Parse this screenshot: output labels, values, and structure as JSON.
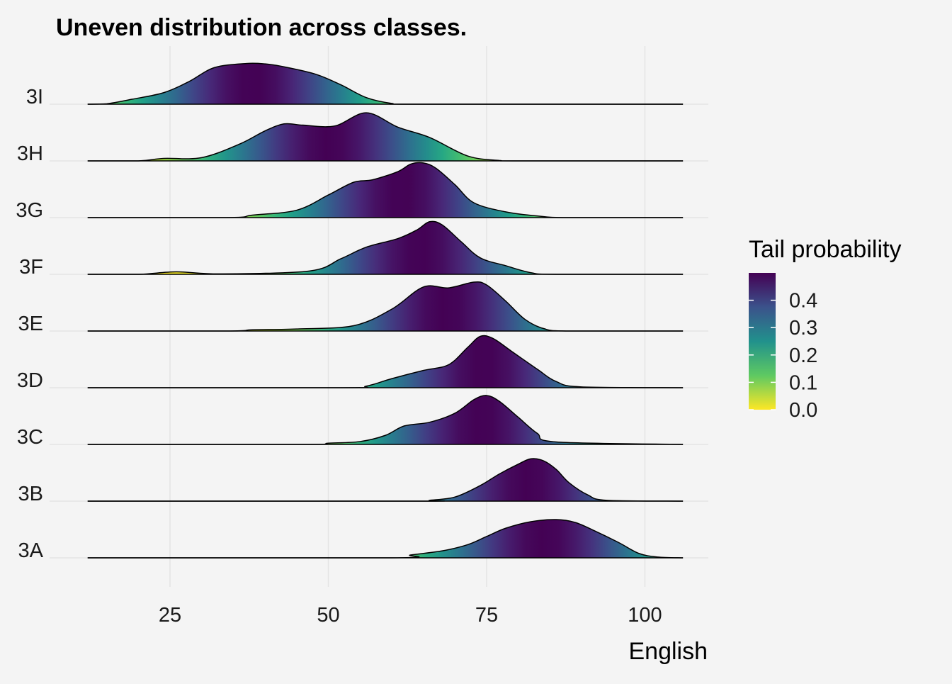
{
  "chart_data": {
    "type": "ridgeline",
    "title": "Uneven distribution across classes.",
    "xlabel": "English",
    "ylabel": "",
    "xlim": [
      5,
      110
    ],
    "x_ticks": [
      25,
      50,
      75,
      100
    ],
    "grid": true,
    "legend": {
      "title": "Tail probability",
      "placement": "right",
      "ticks": [
        "0.0",
        "0.1",
        "0.2",
        "0.3",
        "0.4"
      ],
      "range": [
        0,
        0.5
      ],
      "colors": [
        "#fde725",
        "#5ec962",
        "#21918c",
        "#3b528b",
        "#440154"
      ]
    },
    "categories": [
      "3A",
      "3B",
      "3C",
      "3D",
      "3E",
      "3F",
      "3G",
      "3H",
      "3I"
    ],
    "series": [
      {
        "name": "3A",
        "median": 84,
        "curve": [
          [
            12,
            0
          ],
          [
            60,
            0
          ],
          [
            63,
            0.07
          ],
          [
            68,
            0.17
          ],
          [
            72,
            0.32
          ],
          [
            75,
            0.52
          ],
          [
            78,
            0.72
          ],
          [
            82,
            0.88
          ],
          [
            86,
            0.93
          ],
          [
            89,
            0.86
          ],
          [
            92,
            0.66
          ],
          [
            96,
            0.36
          ],
          [
            99,
            0.11
          ],
          [
            102,
            0.02
          ],
          [
            106,
            0
          ]
        ]
      },
      {
        "name": "3B",
        "median": 81.5,
        "curve": [
          [
            12,
            0
          ],
          [
            64,
            0
          ],
          [
            66,
            0.02
          ],
          [
            70,
            0.1
          ],
          [
            74,
            0.38
          ],
          [
            77,
            0.66
          ],
          [
            80,
            0.9
          ],
          [
            82,
            1.03
          ],
          [
            84,
            0.98
          ],
          [
            86,
            0.77
          ],
          [
            88,
            0.45
          ],
          [
            91,
            0.15
          ],
          [
            94,
            0.02
          ],
          [
            106,
            0
          ]
        ]
      },
      {
        "name": "3C",
        "median": 74,
        "curve": [
          [
            12,
            0
          ],
          [
            46,
            0
          ],
          [
            50,
            0.03
          ],
          [
            55,
            0.07
          ],
          [
            59,
            0.22
          ],
          [
            62,
            0.45
          ],
          [
            66,
            0.54
          ],
          [
            70,
            0.76
          ],
          [
            73,
            1.09
          ],
          [
            75,
            1.19
          ],
          [
            77,
            1.05
          ],
          [
            80,
            0.66
          ],
          [
            83,
            0.27
          ],
          [
            86,
            0.06
          ],
          [
            106,
            0
          ]
        ]
      },
      {
        "name": "3D",
        "median": 74.5,
        "curve": [
          [
            12,
            0
          ],
          [
            52,
            0
          ],
          [
            56,
            0.04
          ],
          [
            60,
            0.22
          ],
          [
            65,
            0.42
          ],
          [
            69,
            0.56
          ],
          [
            72,
            0.98
          ],
          [
            74,
            1.25
          ],
          [
            76,
            1.2
          ],
          [
            79,
            0.88
          ],
          [
            83,
            0.45
          ],
          [
            86,
            0.15
          ],
          [
            90,
            0.02
          ],
          [
            106,
            0
          ]
        ]
      },
      {
        "name": "3E",
        "median": 68.5,
        "curve": [
          [
            12,
            0
          ],
          [
            34,
            0
          ],
          [
            38,
            0.03
          ],
          [
            45,
            0.05
          ],
          [
            54,
            0.13
          ],
          [
            60,
            0.53
          ],
          [
            65,
            1.07
          ],
          [
            69,
            1.05
          ],
          [
            73,
            1.19
          ],
          [
            75,
            1.12
          ],
          [
            78,
            0.73
          ],
          [
            81,
            0.29
          ],
          [
            84,
            0.06
          ],
          [
            88,
            0
          ],
          [
            106,
            0
          ]
        ]
      },
      {
        "name": "3F",
        "median": 64.5,
        "curve": [
          [
            12,
            0
          ],
          [
            20,
            0
          ],
          [
            26,
            0.06
          ],
          [
            33,
            0.01
          ],
          [
            47,
            0.08
          ],
          [
            52,
            0.38
          ],
          [
            56,
            0.66
          ],
          [
            61,
            0.87
          ],
          [
            64,
            1.08
          ],
          [
            66,
            1.28
          ],
          [
            68,
            1.2
          ],
          [
            71,
            0.79
          ],
          [
            74,
            0.4
          ],
          [
            78,
            0.21
          ],
          [
            82,
            0.04
          ],
          [
            86,
            0
          ],
          [
            106,
            0
          ]
        ]
      },
      {
        "name": "3G",
        "median": 61.5,
        "curve": [
          [
            12,
            0
          ],
          [
            34,
            0
          ],
          [
            38,
            0.06
          ],
          [
            45,
            0.18
          ],
          [
            50,
            0.55
          ],
          [
            54,
            0.86
          ],
          [
            57,
            0.92
          ],
          [
            61,
            1.12
          ],
          [
            63,
            1.3
          ],
          [
            65,
            1.33
          ],
          [
            67,
            1.2
          ],
          [
            70,
            0.8
          ],
          [
            73,
            0.36
          ],
          [
            78,
            0.14
          ],
          [
            83,
            0.04
          ],
          [
            88,
            0
          ],
          [
            106,
            0
          ]
        ]
      },
      {
        "name": "3H",
        "median": 50,
        "curve": [
          [
            12,
            0
          ],
          [
            20,
            0
          ],
          [
            24,
            0.06
          ],
          [
            30,
            0.08
          ],
          [
            36,
            0.41
          ],
          [
            40,
            0.73
          ],
          [
            43,
            0.9
          ],
          [
            46,
            0.87
          ],
          [
            51,
            0.85
          ],
          [
            56,
            1.17
          ],
          [
            61,
            0.82
          ],
          [
            66,
            0.57
          ],
          [
            72,
            0.12
          ],
          [
            77,
            0.01
          ],
          [
            80,
            0
          ],
          [
            106,
            0
          ]
        ]
      },
      {
        "name": "3I",
        "median": 38,
        "curve": [
          [
            12,
            0
          ],
          [
            15,
            0.01
          ],
          [
            19,
            0.12
          ],
          [
            24,
            0.28
          ],
          [
            28,
            0.55
          ],
          [
            32,
            0.89
          ],
          [
            37,
            0.99
          ],
          [
            40,
            0.98
          ],
          [
            43,
            0.91
          ],
          [
            48,
            0.73
          ],
          [
            52,
            0.47
          ],
          [
            56,
            0.16
          ],
          [
            60,
            0.02
          ],
          [
            64,
            0
          ],
          [
            106,
            0
          ]
        ]
      }
    ]
  }
}
